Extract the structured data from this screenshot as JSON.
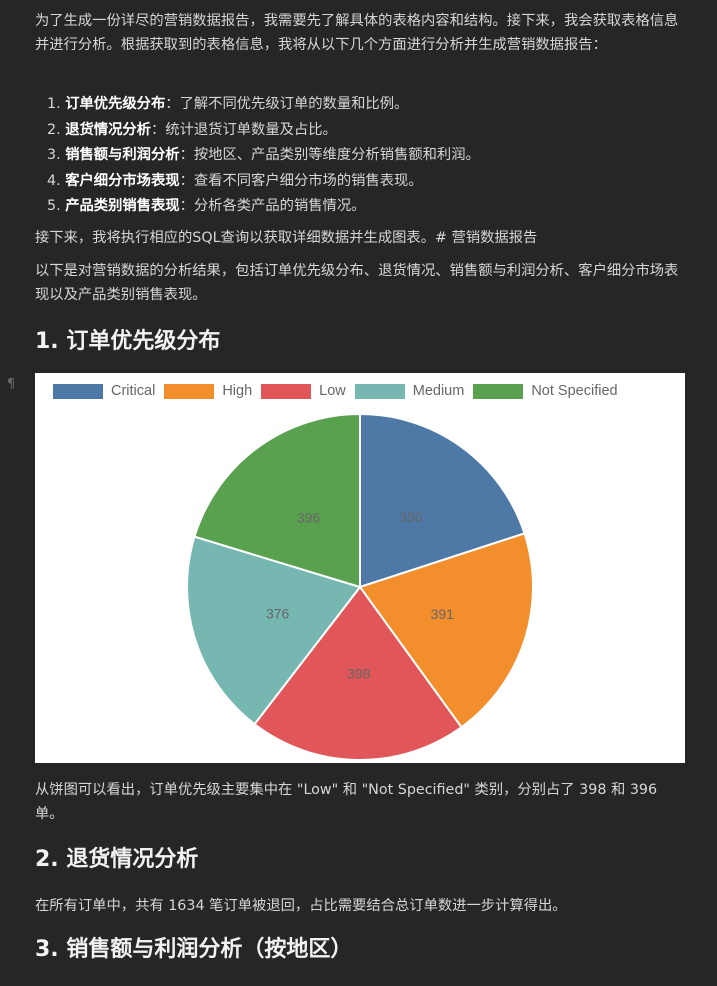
{
  "intro": {
    "paragraph1": "为了生成一份详尽的营销数据报告，我需要先了解具体的表格内容和结构。接下来，我会获取表格信息并进行分析。根据获取到的表格信息，我将从以下几个方面进行分析并生成营销数据报告：",
    "items": [
      {
        "num": "1.",
        "bold": "订单优先级分布",
        "text": "：了解不同优先级订单的数量和比例。"
      },
      {
        "num": "2.",
        "bold": "退货情况分析",
        "text": "：统计退货订单数量及占比。"
      },
      {
        "num": "3.",
        "bold": "销售额与利润分析",
        "text": "：按地区、产品类别等维度分析销售额和利润。"
      },
      {
        "num": "4.",
        "bold": "客户细分市场表现",
        "text": "：查看不同客户细分市场的销售表现。"
      },
      {
        "num": "5.",
        "bold": "产品类别销售表现",
        "text": "：分析各类产品的销售情况。"
      }
    ],
    "paragraph2": "接下来，我将执行相应的SQL查询以获取详细数据并生成图表。# 营销数据报告",
    "paragraph3": "以下是对营销数据的分析结果，包括订单优先级分布、退货情况、销售额与利润分析、客户细分市场表现以及产品类别销售表现。"
  },
  "pilcrow": "¶",
  "section1": {
    "heading": "1. 订单优先级分布",
    "after_chart": "从饼图可以看出，订单优先级主要集中在 \"Low\" 和 \"Not Specified\" 类别，分别占了 398 和 396 单。"
  },
  "chart_data": {
    "type": "pie",
    "categories": [
      "Critical",
      "High",
      "Low",
      "Medium",
      "Not Specified"
    ],
    "values": [
      390,
      391,
      398,
      376,
      396
    ],
    "colors": [
      "#4e79a7",
      "#f28e2b",
      "#e15759",
      "#76b7b2",
      "#59a14f"
    ],
    "legend": "top"
  },
  "section2": {
    "heading": "2. 退货情况分析",
    "text": "在所有订单中，共有 1634 笔订单被退回，占比需要结合总订单数进一步计算得出。"
  },
  "section3": {
    "heading": "3. 销售额与利润分析（按地区）"
  }
}
